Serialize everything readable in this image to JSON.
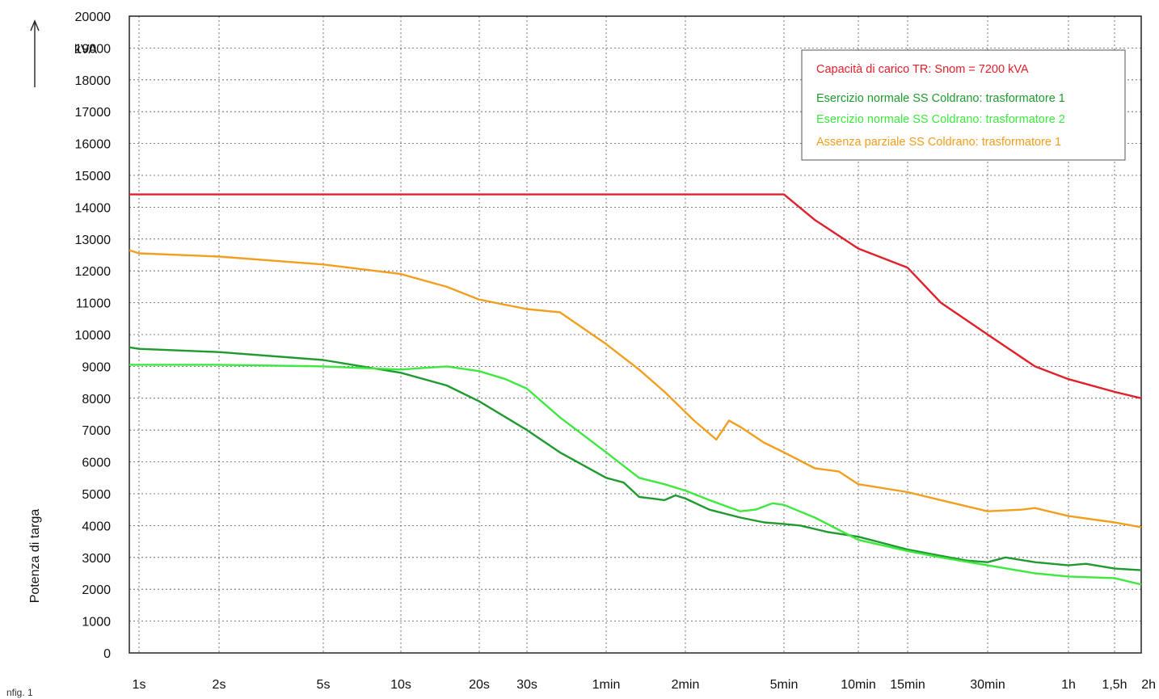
{
  "figure_label": "nfig. 1",
  "chart_data": {
    "type": "line",
    "unit_label": "kVA",
    "ylabel": "Potenza di targa",
    "ylim": [
      0,
      20000
    ],
    "y_ticks": [
      0,
      1000,
      2000,
      3000,
      4000,
      5000,
      6000,
      7000,
      8000,
      9000,
      10000,
      11000,
      12000,
      13000,
      14000,
      15000,
      16000,
      17000,
      18000,
      19000,
      20000
    ],
    "x_scale": "log (time)",
    "x_ticks": [
      {
        "label": "1s",
        "seconds": 1
      },
      {
        "label": "2s",
        "seconds": 2
      },
      {
        "label": "5s",
        "seconds": 5
      },
      {
        "label": "10s",
        "seconds": 10
      },
      {
        "label": "20s",
        "seconds": 20
      },
      {
        "label": "30s",
        "seconds": 30
      },
      {
        "label": "1min",
        "seconds": 60
      },
      {
        "label": "2min",
        "seconds": 120
      },
      {
        "label": "5min",
        "seconds": 300
      },
      {
        "label": "10min",
        "seconds": 600
      },
      {
        "label": "15min",
        "seconds": 900
      },
      {
        "label": "30min",
        "seconds": 1800
      },
      {
        "label": "1h",
        "seconds": 3600
      },
      {
        "label": "1,5h",
        "seconds": 5400
      },
      {
        "label": "2h",
        "seconds": 7200
      }
    ],
    "grid": true,
    "legend_position": "top-right",
    "series": [
      {
        "name": "Capacità di carico TR: Snom = 7200 kVA",
        "color": "#e0202a",
        "points": [
          [
            0.8,
            14400
          ],
          [
            1,
            14400
          ],
          [
            2,
            14400
          ],
          [
            5,
            14400
          ],
          [
            10,
            14400
          ],
          [
            20,
            14400
          ],
          [
            30,
            14400
          ],
          [
            60,
            14400
          ],
          [
            120,
            14400
          ],
          [
            300,
            14400
          ],
          [
            400,
            13600
          ],
          [
            600,
            12700
          ],
          [
            900,
            12100
          ],
          [
            1200,
            11000
          ],
          [
            1800,
            10000
          ],
          [
            2700,
            9000
          ],
          [
            3600,
            8600
          ],
          [
            5400,
            8200
          ],
          [
            7200,
            8000
          ]
        ]
      },
      {
        "name": "Esercizio normale SS Coldrano: trasformatore 1",
        "color": "#1f9a2e",
        "points": [
          [
            0.8,
            9600
          ],
          [
            1,
            9550
          ],
          [
            2,
            9450
          ],
          [
            5,
            9200
          ],
          [
            10,
            8800
          ],
          [
            15,
            8400
          ],
          [
            20,
            7900
          ],
          [
            30,
            7000
          ],
          [
            40,
            6300
          ],
          [
            60,
            5500
          ],
          [
            70,
            5350
          ],
          [
            80,
            4900
          ],
          [
            90,
            4850
          ],
          [
            100,
            4800
          ],
          [
            110,
            4950
          ],
          [
            120,
            4850
          ],
          [
            150,
            4500
          ],
          [
            200,
            4250
          ],
          [
            250,
            4100
          ],
          [
            300,
            4050
          ],
          [
            350,
            4000
          ],
          [
            450,
            3800
          ],
          [
            600,
            3650
          ],
          [
            900,
            3250
          ],
          [
            1200,
            3050
          ],
          [
            1500,
            2900
          ],
          [
            1800,
            2850
          ],
          [
            2100,
            3000
          ],
          [
            2700,
            2850
          ],
          [
            3600,
            2750
          ],
          [
            4200,
            2800
          ],
          [
            5400,
            2650
          ],
          [
            7200,
            2600
          ]
        ]
      },
      {
        "name": "Esercizio normale SS Coldrano: trasformatore 2",
        "color": "#3ee83e",
        "points": [
          [
            0.8,
            9050
          ],
          [
            1,
            9050
          ],
          [
            2,
            9050
          ],
          [
            5,
            9000
          ],
          [
            10,
            8900
          ],
          [
            15,
            9000
          ],
          [
            20,
            8850
          ],
          [
            25,
            8600
          ],
          [
            30,
            8300
          ],
          [
            40,
            7400
          ],
          [
            60,
            6300
          ],
          [
            80,
            5500
          ],
          [
            100,
            5300
          ],
          [
            120,
            5100
          ],
          [
            150,
            4800
          ],
          [
            200,
            4450
          ],
          [
            230,
            4500
          ],
          [
            270,
            4700
          ],
          [
            300,
            4650
          ],
          [
            400,
            4250
          ],
          [
            600,
            3550
          ],
          [
            900,
            3200
          ],
          [
            1200,
            3000
          ],
          [
            1800,
            2750
          ],
          [
            2700,
            2500
          ],
          [
            3600,
            2400
          ],
          [
            5400,
            2350
          ],
          [
            7200,
            2150
          ]
        ]
      },
      {
        "name": "Assenza parziale SS Coldrano: trasformatore 1",
        "color": "#f29e1e",
        "points": [
          [
            0.8,
            12650
          ],
          [
            1,
            12550
          ],
          [
            2,
            12450
          ],
          [
            5,
            12200
          ],
          [
            10,
            11900
          ],
          [
            15,
            11500
          ],
          [
            20,
            11100
          ],
          [
            30,
            10800
          ],
          [
            40,
            10700
          ],
          [
            60,
            9700
          ],
          [
            80,
            8900
          ],
          [
            100,
            8200
          ],
          [
            130,
            7300
          ],
          [
            160,
            6700
          ],
          [
            180,
            7300
          ],
          [
            200,
            7100
          ],
          [
            250,
            6600
          ],
          [
            300,
            6300
          ],
          [
            400,
            5800
          ],
          [
            500,
            5700
          ],
          [
            600,
            5300
          ],
          [
            900,
            5050
          ],
          [
            1200,
            4800
          ],
          [
            1800,
            4450
          ],
          [
            2400,
            4500
          ],
          [
            2700,
            4550
          ],
          [
            3600,
            4300
          ],
          [
            5400,
            4100
          ],
          [
            7200,
            3950
          ]
        ]
      }
    ]
  }
}
